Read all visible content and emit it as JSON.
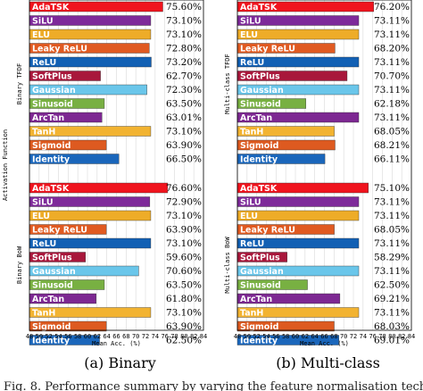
{
  "chart_data": [
    {
      "type": "bar",
      "orientation": "horizontal",
      "panel_caption": "(a) Binary",
      "ylabel": "Activation Function",
      "xlabel": "Mean Acc. (%)",
      "xlim": [
        48,
        84
      ],
      "xticks": [
        48,
        50,
        52,
        54,
        56,
        58,
        60,
        62,
        64,
        66,
        68,
        70,
        72,
        74,
        76,
        78,
        80,
        82,
        84
      ],
      "grid": true,
      "groups": [
        {
          "label": "Binary TFDF",
          "categories": [
            "AdaTSK",
            "SiLU",
            "ELU",
            "Leaky ReLU",
            "ReLU",
            "SoftPlus",
            "Gaussian",
            "Sinusoid",
            "ArcTan",
            "TanH",
            "Sigmoid",
            "Identity"
          ],
          "values": [
            75.6,
            73.1,
            73.1,
            72.8,
            73.2,
            62.7,
            72.3,
            63.5,
            63.01,
            73.1,
            63.9,
            66.5
          ],
          "value_labels": [
            "75.60%",
            "73.10%",
            "73.10%",
            "72.80%",
            "73.20%",
            "62.70%",
            "72.30%",
            "63.50%",
            "63.01%",
            "73.10%",
            "63.90%",
            "66.50%"
          ]
        },
        {
          "label": "Binary BoW",
          "categories": [
            "AdaTSK",
            "SiLU",
            "ELU",
            "Leaky ReLU",
            "ReLU",
            "SoftPlus",
            "Gaussian",
            "Sinusoid",
            "ArcTan",
            "TanH",
            "Sigmoid",
            "Identity"
          ],
          "values": [
            76.6,
            72.9,
            73.1,
            63.9,
            73.1,
            59.6,
            70.6,
            63.5,
            61.8,
            73.1,
            63.9,
            62.5
          ],
          "value_labels": [
            "76.60%",
            "72.90%",
            "73.10%",
            "63.90%",
            "73.10%",
            "59.60%",
            "70.60%",
            "63.50%",
            "61.80%",
            "73.10%",
            "63.90%",
            "62.50%"
          ]
        }
      ]
    },
    {
      "type": "bar",
      "orientation": "horizontal",
      "panel_caption": "(b) Multi-class",
      "xlabel": "Mean Acc. (%)",
      "xlim": [
        48,
        84
      ],
      "xticks": [
        48,
        50,
        52,
        54,
        56,
        58,
        60,
        62,
        64,
        66,
        68,
        70,
        72,
        74,
        76,
        78,
        80,
        82,
        84
      ],
      "grid": true,
      "groups": [
        {
          "label": "Multi-class TFDF",
          "categories": [
            "AdaTSK",
            "SiLU",
            "ELU",
            "Leaky ReLU",
            "ReLU",
            "SoftPlus",
            "Gaussian",
            "Sinusoid",
            "ArcTan",
            "TanH",
            "Sigmoid",
            "Identity"
          ],
          "values": [
            76.2,
            73.11,
            73.11,
            68.2,
            73.11,
            70.7,
            73.11,
            62.18,
            73.11,
            68.05,
            68.21,
            66.11
          ],
          "value_labels": [
            "76.20%",
            "73.11%",
            "73.11%",
            "68.20%",
            "73.11%",
            "70.70%",
            "73.11%",
            "62.18%",
            "73.11%",
            "68.05%",
            "68.21%",
            "66.11%"
          ]
        },
        {
          "label": "Multi-class BoW",
          "categories": [
            "AdaTSK",
            "SiLU",
            "ELU",
            "Leaky ReLU",
            "ReLU",
            "SoftPlus",
            "Gaussian",
            "Sinusoid",
            "ArcTan",
            "TanH",
            "Sigmoid",
            "Identity"
          ],
          "values": [
            75.1,
            73.11,
            73.11,
            68.05,
            73.11,
            58.29,
            73.11,
            62.5,
            69.21,
            73.11,
            68.03,
            69.01
          ],
          "value_labels": [
            "75.10%",
            "73.11%",
            "73.11%",
            "68.05%",
            "73.11%",
            "58.29%",
            "73.11%",
            "62.50%",
            "69.21%",
            "73.11%",
            "68.03%",
            "69.01%"
          ]
        }
      ]
    }
  ],
  "bar_colors": [
    "#f0141e",
    "#7e2a9a",
    "#eeac28",
    "#e05a21",
    "#1260b4",
    "#a8173b",
    "#6ac6ea",
    "#78b042",
    "#7d2892",
    "#f2b331",
    "#dd5a20",
    "#1a66bb"
  ],
  "caption_fragment": "Fig. 8.    Performance summary by varying the feature normalisation tech"
}
